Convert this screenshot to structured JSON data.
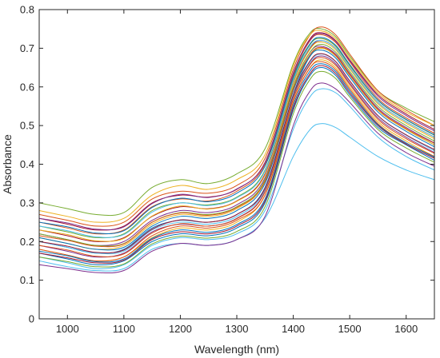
{
  "chart_data": {
    "type": "line",
    "title": "",
    "xlabel": "Wavelength (nm)",
    "ylabel": "Absorbance",
    "xlim": [
      950,
      1650
    ],
    "ylim": [
      0,
      0.8
    ],
    "xticks": [
      1000,
      1100,
      1200,
      1300,
      1400,
      1500,
      1600
    ],
    "yticks": [
      0,
      0.1,
      0.2,
      0.3,
      0.4,
      0.5,
      0.6,
      0.7,
      0.8
    ],
    "grid": false,
    "legend": "none",
    "x": [
      950,
      1000,
      1050,
      1100,
      1150,
      1200,
      1250,
      1300,
      1350,
      1400,
      1430,
      1450,
      1475,
      1500,
      1550,
      1600,
      1650
    ],
    "series": [
      {
        "color": "#0072BD",
        "values": [
          0.2,
          0.185,
          0.17,
          0.18,
          0.235,
          0.255,
          0.25,
          0.27,
          0.34,
          0.58,
          0.68,
          0.7,
          0.68,
          0.63,
          0.54,
          0.49,
          0.45
        ]
      },
      {
        "color": "#D95319",
        "values": [
          0.25,
          0.235,
          0.22,
          0.23,
          0.29,
          0.31,
          0.305,
          0.33,
          0.4,
          0.63,
          0.72,
          0.735,
          0.715,
          0.665,
          0.57,
          0.52,
          0.48
        ]
      },
      {
        "color": "#EDB120",
        "values": [
          0.18,
          0.165,
          0.15,
          0.16,
          0.21,
          0.235,
          0.23,
          0.25,
          0.32,
          0.56,
          0.65,
          0.67,
          0.65,
          0.6,
          0.51,
          0.46,
          0.42
        ]
      },
      {
        "color": "#7E2F8E",
        "values": [
          0.22,
          0.205,
          0.19,
          0.2,
          0.255,
          0.28,
          0.275,
          0.295,
          0.365,
          0.6,
          0.69,
          0.705,
          0.685,
          0.635,
          0.545,
          0.495,
          0.455
        ]
      },
      {
        "color": "#77AC30",
        "values": [
          0.3,
          0.285,
          0.27,
          0.275,
          0.34,
          0.36,
          0.35,
          0.375,
          0.44,
          0.66,
          0.74,
          0.75,
          0.73,
          0.68,
          0.59,
          0.545,
          0.51
        ]
      },
      {
        "color": "#4DBEEE",
        "values": [
          0.15,
          0.135,
          0.125,
          0.13,
          0.18,
          0.195,
          0.19,
          0.205,
          0.26,
          0.42,
          0.49,
          0.505,
          0.495,
          0.47,
          0.42,
          0.385,
          0.36
        ]
      },
      {
        "color": "#A2142F",
        "values": [
          0.23,
          0.215,
          0.2,
          0.21,
          0.265,
          0.29,
          0.285,
          0.305,
          0.375,
          0.61,
          0.7,
          0.72,
          0.7,
          0.65,
          0.56,
          0.51,
          0.47
        ]
      },
      {
        "color": "#0072BD",
        "values": [
          0.17,
          0.155,
          0.14,
          0.15,
          0.2,
          0.22,
          0.215,
          0.235,
          0.3,
          0.54,
          0.63,
          0.65,
          0.63,
          0.58,
          0.495,
          0.45,
          0.41
        ]
      },
      {
        "color": "#D95319",
        "values": [
          0.27,
          0.255,
          0.24,
          0.25,
          0.31,
          0.33,
          0.325,
          0.345,
          0.415,
          0.645,
          0.735,
          0.755,
          0.735,
          0.685,
          0.59,
          0.54,
          0.5
        ]
      },
      {
        "color": "#EDB120",
        "values": [
          0.21,
          0.195,
          0.18,
          0.19,
          0.245,
          0.27,
          0.265,
          0.285,
          0.355,
          0.59,
          0.68,
          0.7,
          0.68,
          0.63,
          0.54,
          0.49,
          0.45
        ]
      },
      {
        "color": "#7E2F8E",
        "values": [
          0.19,
          0.175,
          0.16,
          0.17,
          0.225,
          0.245,
          0.24,
          0.26,
          0.33,
          0.57,
          0.66,
          0.68,
          0.66,
          0.61,
          0.52,
          0.47,
          0.43
        ]
      },
      {
        "color": "#77AC30",
        "values": [
          0.24,
          0.225,
          0.21,
          0.22,
          0.28,
          0.3,
          0.295,
          0.315,
          0.385,
          0.62,
          0.71,
          0.725,
          0.705,
          0.655,
          0.565,
          0.515,
          0.475
        ]
      },
      {
        "color": "#4DBEEE",
        "values": [
          0.16,
          0.145,
          0.13,
          0.14,
          0.19,
          0.21,
          0.205,
          0.22,
          0.28,
          0.49,
          0.575,
          0.595,
          0.585,
          0.55,
          0.47,
          0.42,
          0.385
        ]
      },
      {
        "color": "#A2142F",
        "values": [
          0.26,
          0.245,
          0.23,
          0.24,
          0.3,
          0.32,
          0.315,
          0.335,
          0.405,
          0.635,
          0.725,
          0.74,
          0.72,
          0.67,
          0.58,
          0.53,
          0.49
        ]
      },
      {
        "color": "#0072BD",
        "values": [
          0.21,
          0.195,
          0.18,
          0.185,
          0.24,
          0.265,
          0.26,
          0.28,
          0.35,
          0.59,
          0.68,
          0.695,
          0.675,
          0.625,
          0.535,
          0.485,
          0.445
        ]
      },
      {
        "color": "#D95319",
        "values": [
          0.18,
          0.165,
          0.15,
          0.16,
          0.215,
          0.24,
          0.235,
          0.255,
          0.32,
          0.56,
          0.65,
          0.665,
          0.645,
          0.595,
          0.505,
          0.455,
          0.42
        ]
      },
      {
        "color": "#EDB120",
        "values": [
          0.28,
          0.265,
          0.25,
          0.26,
          0.32,
          0.345,
          0.335,
          0.36,
          0.425,
          0.655,
          0.735,
          0.745,
          0.725,
          0.675,
          0.585,
          0.535,
          0.5
        ]
      },
      {
        "color": "#7E2F8E",
        "values": [
          0.14,
          0.13,
          0.12,
          0.125,
          0.175,
          0.195,
          0.19,
          0.205,
          0.265,
          0.5,
          0.59,
          0.61,
          0.595,
          0.56,
          0.48,
          0.43,
          0.395
        ]
      },
      {
        "color": "#77AC30",
        "values": [
          0.22,
          0.205,
          0.19,
          0.195,
          0.25,
          0.275,
          0.27,
          0.29,
          0.36,
          0.6,
          0.69,
          0.71,
          0.69,
          0.64,
          0.55,
          0.5,
          0.46
        ]
      },
      {
        "color": "#4DBEEE",
        "values": [
          0.2,
          0.185,
          0.17,
          0.175,
          0.23,
          0.25,
          0.245,
          0.265,
          0.335,
          0.575,
          0.665,
          0.685,
          0.665,
          0.615,
          0.525,
          0.475,
          0.435
        ]
      },
      {
        "color": "#A2142F",
        "values": [
          0.17,
          0.158,
          0.145,
          0.152,
          0.205,
          0.225,
          0.22,
          0.24,
          0.305,
          0.545,
          0.635,
          0.655,
          0.635,
          0.585,
          0.5,
          0.452,
          0.415
        ]
      },
      {
        "color": "#0072BD",
        "values": [
          0.25,
          0.238,
          0.222,
          0.228,
          0.288,
          0.312,
          0.303,
          0.325,
          0.395,
          0.625,
          0.712,
          0.728,
          0.708,
          0.658,
          0.566,
          0.516,
          0.476
        ]
      },
      {
        "color": "#D95319",
        "values": [
          0.19,
          0.178,
          0.162,
          0.168,
          0.222,
          0.246,
          0.24,
          0.259,
          0.328,
          0.568,
          0.658,
          0.676,
          0.656,
          0.606,
          0.516,
          0.466,
          0.428
        ]
      },
      {
        "color": "#EDB120",
        "values": [
          0.23,
          0.218,
          0.202,
          0.208,
          0.266,
          0.292,
          0.284,
          0.304,
          0.372,
          0.608,
          0.698,
          0.716,
          0.696,
          0.646,
          0.556,
          0.506,
          0.466
        ]
      },
      {
        "color": "#7E2F8E",
        "values": [
          0.26,
          0.248,
          0.232,
          0.238,
          0.298,
          0.322,
          0.314,
          0.336,
          0.404,
          0.636,
          0.722,
          0.738,
          0.718,
          0.668,
          0.576,
          0.526,
          0.486
        ]
      },
      {
        "color": "#77AC30",
        "values": [
          0.16,
          0.148,
          0.135,
          0.142,
          0.194,
          0.214,
          0.209,
          0.226,
          0.29,
          0.53,
          0.62,
          0.64,
          0.622,
          0.574,
          0.49,
          0.442,
          0.405
        ]
      },
      {
        "color": "#4DBEEE",
        "values": [
          0.24,
          0.228,
          0.212,
          0.218,
          0.276,
          0.3,
          0.293,
          0.313,
          0.382,
          0.616,
          0.704,
          0.72,
          0.7,
          0.65,
          0.56,
          0.51,
          0.47
        ]
      },
      {
        "color": "#A2142F",
        "values": [
          0.2,
          0.188,
          0.172,
          0.178,
          0.232,
          0.256,
          0.25,
          0.27,
          0.338,
          0.578,
          0.668,
          0.686,
          0.666,
          0.616,
          0.526,
          0.476,
          0.438
        ]
      },
      {
        "color": "#0072BD",
        "values": [
          0.175,
          0.163,
          0.148,
          0.155,
          0.208,
          0.23,
          0.224,
          0.244,
          0.31,
          0.552,
          0.642,
          0.66,
          0.64,
          0.59,
          0.502,
          0.455,
          0.418
        ]
      },
      {
        "color": "#D95319",
        "values": [
          0.215,
          0.203,
          0.188,
          0.194,
          0.25,
          0.274,
          0.268,
          0.288,
          0.356,
          0.594,
          0.684,
          0.702,
          0.682,
          0.632,
          0.542,
          0.492,
          0.454
        ]
      }
    ]
  }
}
